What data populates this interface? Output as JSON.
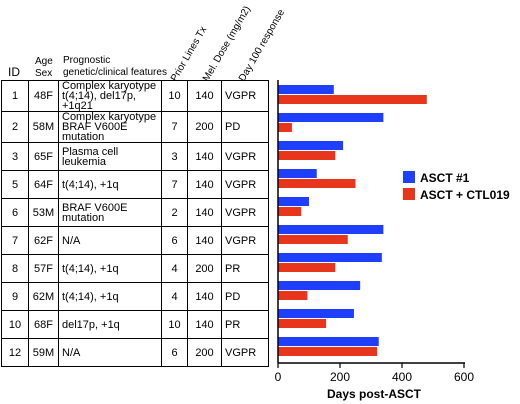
{
  "table": {
    "headers": {
      "id": "ID",
      "age_sex_1": "Age",
      "age_sex_2": "Sex",
      "features_1": "Prognostic",
      "features_2": "genetic/clinical features",
      "prior_lines": "Prior Lines Tx",
      "mel_dose": "Mel. Dose (mg/m2)",
      "day100": "Day 100 response"
    },
    "rows": [
      {
        "id": "1",
        "age_sex": "48F",
        "features": "Complex karyotype t(4;14), del17p, +1q21",
        "prior_lines": "10",
        "mel_dose": "140",
        "response": "VGPR"
      },
      {
        "id": "2",
        "age_sex": "58M",
        "features": "Complex karyotype BRAF V600E mutation",
        "prior_lines": "7",
        "mel_dose": "200",
        "response": "PD"
      },
      {
        "id": "3",
        "age_sex": "65F",
        "features": "Plasma cell leukemia",
        "prior_lines": "3",
        "mel_dose": "140",
        "response": "VGPR"
      },
      {
        "id": "5",
        "age_sex": "64F",
        "features": "t(4;14), +1q",
        "prior_lines": "7",
        "mel_dose": "140",
        "response": "VGPR"
      },
      {
        "id": "6",
        "age_sex": "53M",
        "features": "BRAF V600E mutation",
        "prior_lines": "2",
        "mel_dose": "140",
        "response": "VGPR"
      },
      {
        "id": "7",
        "age_sex": "62F",
        "features": "N/A",
        "prior_lines": "6",
        "mel_dose": "140",
        "response": "VGPR"
      },
      {
        "id": "8",
        "age_sex": "57F",
        "features": "t(4;14), +1q",
        "prior_lines": "4",
        "mel_dose": "200",
        "response": "PR"
      },
      {
        "id": "9",
        "age_sex": "62M",
        "features": "t(4;14), +1q",
        "prior_lines": "4",
        "mel_dose": "140",
        "response": "PD"
      },
      {
        "id": "10",
        "age_sex": "68F",
        "features": "del17p, +1q",
        "prior_lines": "10",
        "mel_dose": "140",
        "response": "PR"
      },
      {
        "id": "12",
        "age_sex": "59M",
        "features": "N/A",
        "prior_lines": "6",
        "mel_dose": "200",
        "response": "VGPR"
      }
    ]
  },
  "chart_data": {
    "type": "bar",
    "orientation": "horizontal",
    "categories": [
      "1",
      "2",
      "3",
      "5",
      "6",
      "7",
      "8",
      "9",
      "10",
      "12"
    ],
    "series": [
      {
        "name": "ASCT #1",
        "color": "#1f3fff",
        "values": [
          180,
          340,
          210,
          125,
          100,
          340,
          335,
          265,
          245,
          325
        ]
      },
      {
        "name": "ASCT + CTL019",
        "color": "#e8361c",
        "values": [
          480,
          45,
          185,
          250,
          75,
          225,
          185,
          95,
          155,
          320
        ]
      }
    ],
    "xlabel": "Days post-ASCT",
    "xlim": [
      0,
      600
    ],
    "xticks": [
      0,
      200,
      400,
      600
    ],
    "legend_position": "right"
  }
}
